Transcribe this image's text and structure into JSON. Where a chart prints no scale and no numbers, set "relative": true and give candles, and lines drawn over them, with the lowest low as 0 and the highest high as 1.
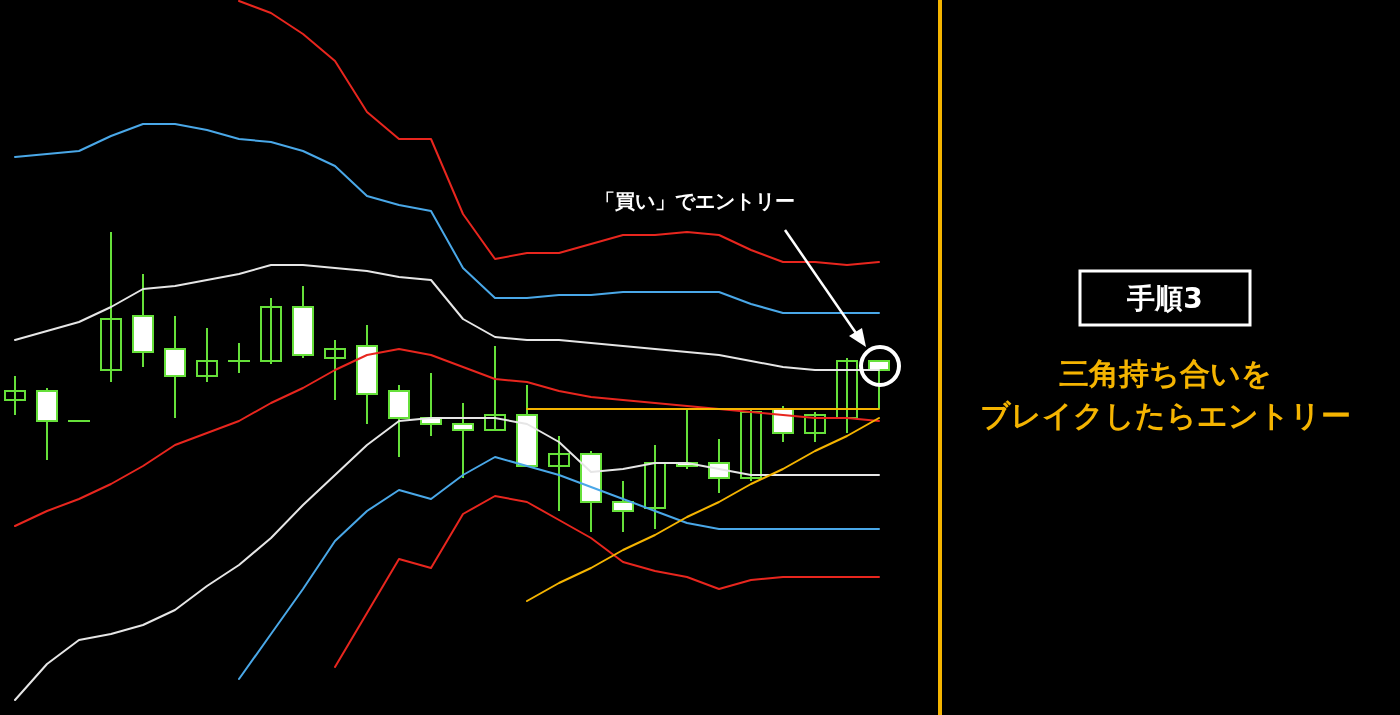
{
  "chart_data": {
    "type": "candlestick",
    "relative": true,
    "title": "手順3",
    "annotations": [
      "「買い」でエントリー",
      "三角持ち合いを",
      "ブレイクしたらエントリー"
    ],
    "categories": [
      null,
      null,
      null,
      null,
      null,
      null,
      null,
      null,
      null,
      null,
      null,
      null,
      null,
      null,
      null,
      null,
      null,
      null,
      null,
      null,
      null,
      null,
      null,
      null,
      null,
      null,
      null,
      null
    ],
    "color": "#66e03a",
    "ohlc": [
      [
        0.44,
        0.52,
        0.39,
        0.47
      ],
      [
        0.47,
        0.48,
        0.24,
        0.37
      ],
      [
        0.37,
        0.37,
        0.37,
        0.37
      ],
      [
        0.54,
        1.0,
        0.5,
        0.71
      ],
      [
        0.72,
        0.86,
        0.55,
        0.6
      ],
      [
        0.61,
        0.72,
        0.38,
        0.52
      ],
      [
        0.52,
        0.68,
        0.5,
        0.57
      ],
      [
        0.57,
        0.63,
        0.53,
        0.57
      ],
      [
        0.57,
        0.78,
        0.56,
        0.75
      ],
      [
        0.75,
        0.82,
        0.58,
        0.59
      ],
      [
        0.58,
        0.64,
        0.44,
        0.61
      ],
      [
        0.62,
        0.69,
        0.36,
        0.46
      ],
      [
        0.47,
        0.49,
        0.25,
        0.38
      ],
      [
        0.38,
        0.53,
        0.32,
        0.36
      ],
      [
        0.36,
        0.43,
        0.18,
        0.34
      ],
      [
        0.34,
        0.62,
        0.34,
        0.39
      ],
      [
        0.39,
        0.49,
        0.22,
        0.22
      ],
      [
        0.22,
        0.32,
        0.07,
        0.26
      ],
      [
        0.26,
        0.27,
        0,
        0.1
      ],
      [
        0.1,
        0.17,
        0,
        0.07
      ],
      [
        0.08,
        0.29,
        0.01,
        0.23
      ],
      [
        0.23,
        0.41,
        0.21,
        0.22
      ],
      [
        0.23,
        0.31,
        0.13,
        0.18
      ],
      [
        0.18,
        0.41,
        0.17,
        0.4
      ],
      [
        0.41,
        0.42,
        0.3,
        0.33
      ],
      [
        0.33,
        0.4,
        0.3,
        0.39
      ],
      [
        0.38,
        0.58,
        0.33,
        0.57
      ],
      [
        0.57,
        0.57,
        0.41,
        0.54
      ]
    ],
    "series": [
      {
        "type": "line",
        "color": "#e8261e",
        "values": [
          null,
          null,
          null,
          null,
          null,
          null,
          null,
          1.77,
          1.73,
          1.66,
          1.57,
          1.4,
          1.31,
          1.31,
          1.06,
          0.91,
          0.93,
          0.93,
          0.96,
          0.99,
          0.99,
          1.0,
          0.99,
          0.94,
          0.9,
          0.9,
          0.89,
          0.9
        ]
      },
      {
        "type": "line",
        "color": "#4aa8e8",
        "values": [
          1.25,
          1.26,
          1.27,
          1.32,
          1.36,
          1.36,
          1.34,
          1.31,
          1.3,
          1.27,
          1.22,
          1.12,
          1.09,
          1.07,
          0.88,
          0.78,
          0.78,
          0.79,
          0.79,
          0.8,
          0.8,
          0.8,
          0.8,
          0.76,
          0.73,
          0.73,
          0.73,
          0.73
        ]
      },
      {
        "type": "line",
        "color": "#e6e6e6",
        "values": [
          0.64,
          0.67,
          0.7,
          0.75,
          0.81,
          0.82,
          0.84,
          0.86,
          0.89,
          0.89,
          0.88,
          0.87,
          0.85,
          0.84,
          0.71,
          0.65,
          0.64,
          0.64,
          0.63,
          0.62,
          0.61,
          0.6,
          0.59,
          0.57,
          0.55,
          0.54,
          0.54,
          0.54
        ]
      },
      {
        "type": "line",
        "color": "#e8261e",
        "values": [
          0.02,
          0.07,
          0.11,
          0.16,
          0.22,
          0.29,
          0.33,
          0.37,
          0.43,
          0.48,
          0.54,
          0.59,
          0.61,
          0.59,
          0.55,
          0.51,
          0.5,
          0.47,
          0.45,
          0.44,
          0.43,
          0.42,
          0.41,
          0.4,
          0.39,
          0.38,
          0.38,
          0.37
        ]
      },
      {
        "type": "line",
        "color": "#e6e6e6",
        "values": [
          -0.56,
          -0.44,
          -0.36,
          -0.34,
          -0.31,
          -0.26,
          -0.18,
          -0.11,
          -0.02,
          0.09,
          0.19,
          0.29,
          0.37,
          0.38,
          0.38,
          0.38,
          0.36,
          0.3,
          0.2,
          0.21,
          0.23,
          0.23,
          0.21,
          0.19,
          0.19,
          0.19,
          0.19,
          0.19
        ]
      },
      {
        "type": "line",
        "color": "#4aa8e8",
        "values": [
          null,
          null,
          null,
          null,
          null,
          null,
          null,
          -0.49,
          -0.34,
          -0.19,
          -0.03,
          0.07,
          0.14,
          0.11,
          0.19,
          0.25,
          0.22,
          0.19,
          0.15,
          0.11,
          0.07,
          0.03,
          0.01,
          0.01,
          0.01,
          0.01,
          0.01,
          0.01
        ]
      },
      {
        "type": "line",
        "color": "#e8261e",
        "values": [
          null,
          null,
          null,
          null,
          null,
          null,
          null,
          null,
          null,
          null,
          -0.45,
          -0.27,
          -0.09,
          -0.12,
          0.06,
          0.12,
          0.1,
          0.04,
          -0.02,
          -0.1,
          -0.13,
          -0.15,
          -0.19,
          -0.16,
          -0.15,
          -0.15,
          -0.15,
          -0.15
        ]
      },
      {
        "type": "line",
        "color": "#f5b400",
        "values": [
          null,
          null,
          null,
          null,
          null,
          null,
          null,
          null,
          null,
          null,
          null,
          null,
          null,
          null,
          null,
          null,
          0.41,
          0.41,
          0.41,
          0.41,
          0.41,
          0.41,
          0.41,
          0.41,
          0.41,
          0.41,
          0.41,
          0.41
        ]
      },
      {
        "type": "line",
        "color": "#f5b400",
        "values": [
          null,
          null,
          null,
          null,
          null,
          null,
          null,
          null,
          null,
          null,
          null,
          null,
          null,
          null,
          null,
          null,
          -0.23,
          -0.17,
          -0.12,
          -0.06,
          -0.01,
          0.05,
          0.1,
          0.16,
          0.21,
          0.27,
          0.32,
          0.38
        ]
      }
    ]
  }
}
